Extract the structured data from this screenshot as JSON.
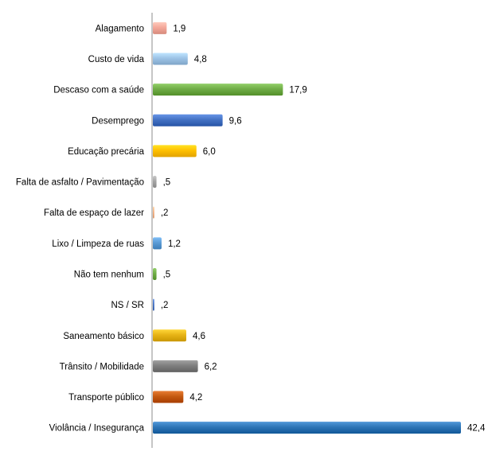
{
  "chart_data": {
    "type": "bar",
    "orientation": "horizontal",
    "title": "",
    "xlabel": "",
    "ylabel": "",
    "grid": false,
    "legend": "none",
    "xlim": [
      0,
      42.4
    ],
    "categories": [
      "Alagamento",
      "Custo de vida",
      "Descaso com a saúde",
      "Desemprego",
      "Educação precária",
      "Falta de asfalto / Pavimentação",
      "Falta de espaço de lazer",
      "Lixo / Limpeza de ruas",
      "Não tem nenhum",
      "NS / SR",
      "Saneamento básico",
      "Trânsito / Mobilidade",
      "Transporte público",
      "Violância / Insegurança"
    ],
    "values": [
      1.9,
      4.8,
      17.9,
      9.6,
      6.0,
      0.5,
      0.2,
      1.2,
      0.5,
      0.2,
      4.6,
      6.2,
      4.2,
      42.4
    ],
    "value_labels": [
      "1,9",
      "4,8",
      "17,9",
      "9,6",
      "6,0",
      ",5",
      ",2",
      "1,2",
      ",5",
      ",2",
      "4,6",
      "6,2",
      "4,2",
      "42,4"
    ],
    "colors": [
      "#F4A89A",
      "#9DC3E6",
      "#70AD47",
      "#4472C4",
      "#FFC000",
      "#A5A5A5",
      "#F4B183",
      "#5B9BD5",
      "#70AD47",
      "#4472C4",
      "#E7B416",
      "#7F7F7F",
      "#C55A11",
      "#2E75B6"
    ]
  }
}
